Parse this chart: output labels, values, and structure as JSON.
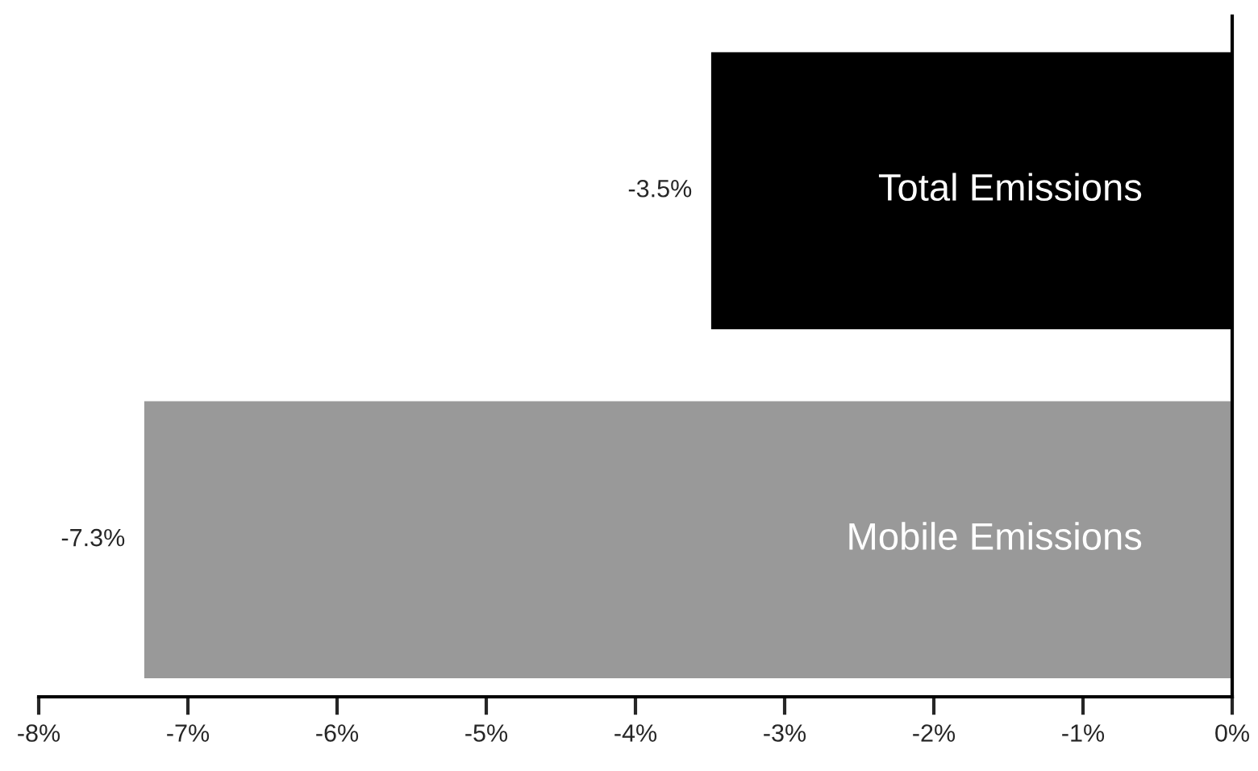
{
  "chart_data": {
    "type": "bar",
    "orientation": "horizontal",
    "categories": [
      "Total Emissions",
      "Mobile Emissions"
    ],
    "values": [
      -3.5,
      -7.3
    ],
    "colors": [
      "#000000",
      "#999999"
    ],
    "value_labels": [
      "-3.5%",
      "-7.3%"
    ],
    "xlim": [
      -8,
      0
    ],
    "xticks": [
      {
        "value": -8,
        "label": "-8%"
      },
      {
        "value": -7,
        "label": "-7%"
      },
      {
        "value": -6,
        "label": "-6%"
      },
      {
        "value": -5,
        "label": "-5%"
      },
      {
        "value": -4,
        "label": "-4%"
      },
      {
        "value": -3,
        "label": "-3%"
      },
      {
        "value": -2,
        "label": "-2%"
      },
      {
        "value": -1,
        "label": "-1%"
      },
      {
        "value": 0,
        "label": "0%"
      }
    ],
    "tick_labels": "x",
    "grid": false,
    "legend": false
  }
}
